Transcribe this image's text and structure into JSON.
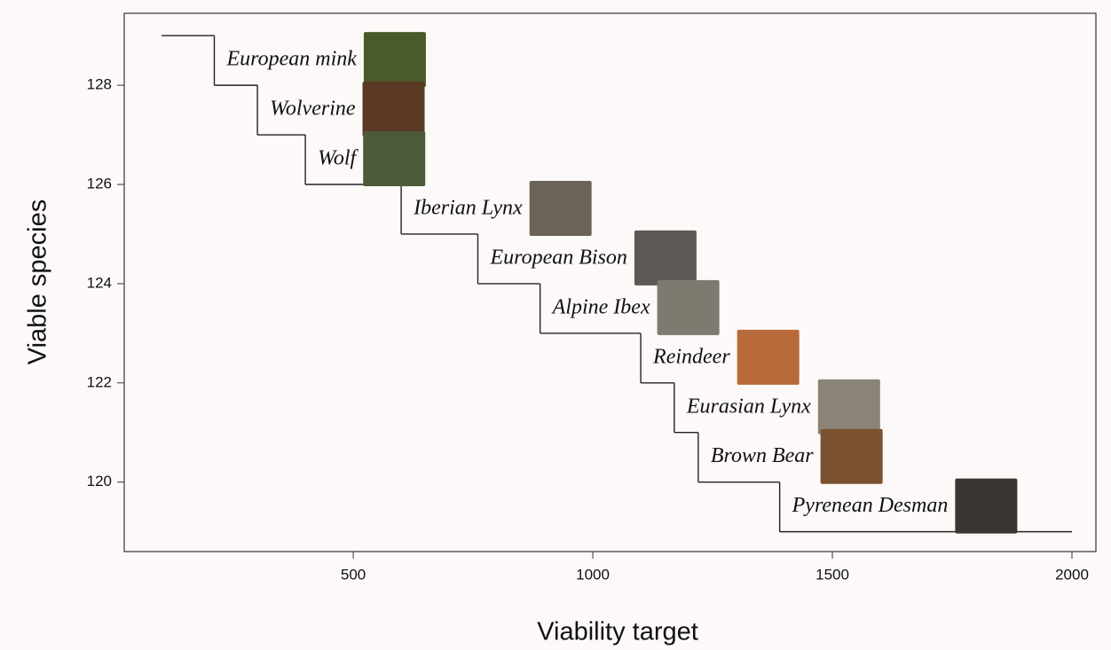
{
  "chart_data": {
    "type": "step",
    "x_label": "Viability target",
    "y_label": "Viable species",
    "x": [
      100,
      210,
      300,
      400,
      600,
      760,
      890,
      1100,
      1170,
      1220,
      1390,
      2000
    ],
    "values": [
      129,
      128,
      127,
      126,
      125,
      124,
      123,
      122,
      121,
      120,
      119,
      119
    ],
    "color": "#222222",
    "annotations": [
      "European mink",
      "Wolverine",
      "Wolf",
      "Iberian Lynx",
      "European Bison",
      "Alpine Ibex",
      "Reindeer",
      "Eurasian Lynx",
      "Brown Bear",
      "Pyrenean Desman"
    ],
    "xlim": [
      22,
      2050
    ],
    "ylim": [
      118.6,
      129.45
    ],
    "xticks": [
      500,
      1000,
      1500,
      2000
    ],
    "yticks": [
      120,
      122,
      124,
      126,
      128
    ]
  }
}
